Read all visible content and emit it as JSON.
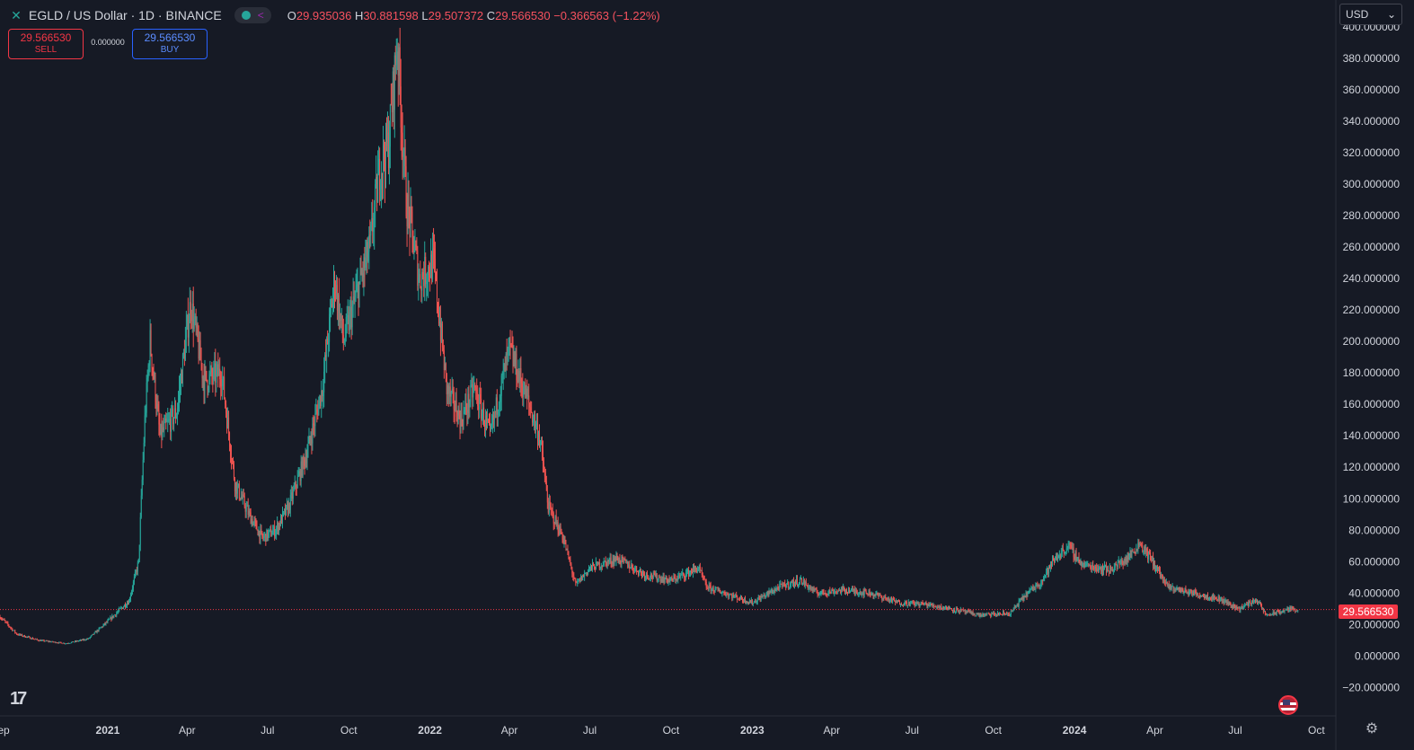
{
  "legend": {
    "symbol": "EGLD / US Dollar · 1D · BINANCE",
    "open_key": "O",
    "open": "29.935036",
    "high_key": "H",
    "high": "30.881598",
    "low_key": "L",
    "low": "29.507372",
    "close_key": "C",
    "close": "29.566530",
    "change": "−0.366563 (−1.22%)"
  },
  "trade": {
    "sell_price": "29.566530",
    "sell_label": "SELL",
    "spread": "0.000000",
    "buy_price": "29.566530",
    "buy_label": "BUY"
  },
  "currency": {
    "value": "USD",
    "icon": "chevron-down-icon"
  },
  "last_price_label": "29.566530",
  "colors": {
    "background": "#161a25",
    "up": "#26a69a",
    "down": "#ef5350",
    "axis_text": "#d1d4dc",
    "last_price": "#f23645"
  },
  "chart_data": {
    "type": "candlestick",
    "title": "EGLD / US Dollar · 1D · BINANCE",
    "y_tick_labels": [
      "400.000000",
      "380.000000",
      "360.000000",
      "340.000000",
      "320.000000",
      "300.000000",
      "280.000000",
      "260.000000",
      "240.000000",
      "220.000000",
      "200.000000",
      "180.000000",
      "160.000000",
      "140.000000",
      "120.000000",
      "100.000000",
      "80.000000",
      "60.000000",
      "40.000000",
      "20.000000",
      "0.000000",
      "−20.000000"
    ],
    "y_ticks": [
      400,
      380,
      360,
      340,
      320,
      300,
      280,
      260,
      240,
      220,
      200,
      180,
      160,
      140,
      120,
      100,
      80,
      60,
      40,
      20,
      0,
      -20
    ],
    "ylim": [
      -38,
      417
    ],
    "x_tick_labels": [
      "Sep",
      "2021",
      "Apr",
      "Jul",
      "Oct",
      "2022",
      "Apr",
      "Jul",
      "Oct",
      "2023",
      "Apr",
      "Jul",
      "Oct",
      "2024",
      "Apr",
      "Jul",
      "Oct"
    ],
    "x_ticks": [
      "2020-09-01",
      "2021-01-01",
      "2021-04-01",
      "2021-07-01",
      "2021-10-01",
      "2022-01-01",
      "2022-04-01",
      "2022-07-01",
      "2022-10-01",
      "2023-01-01",
      "2023-04-01",
      "2023-07-01",
      "2023-10-01",
      "2024-01-01",
      "2024-04-01",
      "2024-07-01",
      "2024-10-01"
    ],
    "xlim": [
      "2020-09-01",
      "2024-10-23"
    ],
    "last_price": 29.56653,
    "approx_close_path": [
      [
        "2020-09-01",
        25
      ],
      [
        "2020-09-20",
        14
      ],
      [
        "2020-10-15",
        10
      ],
      [
        "2020-11-15",
        8
      ],
      [
        "2020-12-10",
        11
      ],
      [
        "2021-01-01",
        22
      ],
      [
        "2021-01-25",
        35
      ],
      [
        "2021-02-05",
        60
      ],
      [
        "2021-02-12",
        150
      ],
      [
        "2021-02-18",
        200
      ],
      [
        "2021-03-01",
        140
      ],
      [
        "2021-03-20",
        155
      ],
      [
        "2021-04-05",
        225
      ],
      [
        "2021-04-20",
        175
      ],
      [
        "2021-05-10",
        180
      ],
      [
        "2021-05-25",
        110
      ],
      [
        "2021-06-10",
        90
      ],
      [
        "2021-06-25",
        75
      ],
      [
        "2021-07-10",
        80
      ],
      [
        "2021-07-25",
        95
      ],
      [
        "2021-08-15",
        130
      ],
      [
        "2021-09-01",
        170
      ],
      [
        "2021-09-15",
        240
      ],
      [
        "2021-09-25",
        200
      ],
      [
        "2021-10-10",
        230
      ],
      [
        "2021-10-25",
        260
      ],
      [
        "2021-11-05",
        310
      ],
      [
        "2021-11-15",
        325
      ],
      [
        "2021-11-25",
        390
      ],
      [
        "2021-12-05",
        290
      ],
      [
        "2021-12-20",
        240
      ],
      [
        "2022-01-05",
        250
      ],
      [
        "2022-01-20",
        170
      ],
      [
        "2022-02-05",
        150
      ],
      [
        "2022-02-20",
        170
      ],
      [
        "2022-03-10",
        140
      ],
      [
        "2022-04-01",
        195
      ],
      [
        "2022-04-20",
        165
      ],
      [
        "2022-05-05",
        140
      ],
      [
        "2022-05-15",
        95
      ],
      [
        "2022-06-01",
        75
      ],
      [
        "2022-06-15",
        45
      ],
      [
        "2022-07-01",
        56
      ],
      [
        "2022-08-01",
        62
      ],
      [
        "2022-09-01",
        52
      ],
      [
        "2022-10-01",
        48
      ],
      [
        "2022-11-01",
        56
      ],
      [
        "2022-11-10",
        44
      ],
      [
        "2022-12-01",
        40
      ],
      [
        "2023-01-01",
        34
      ],
      [
        "2023-02-01",
        44
      ],
      [
        "2023-02-25",
        48
      ],
      [
        "2023-03-15",
        40
      ],
      [
        "2023-04-15",
        42
      ],
      [
        "2023-05-15",
        40
      ],
      [
        "2023-06-15",
        34
      ],
      [
        "2023-07-15",
        33
      ],
      [
        "2023-08-15",
        30
      ],
      [
        "2023-09-15",
        26
      ],
      [
        "2023-10-20",
        27
      ],
      [
        "2023-11-05",
        38
      ],
      [
        "2023-11-25",
        48
      ],
      [
        "2023-12-10",
        62
      ],
      [
        "2023-12-25",
        70
      ],
      [
        "2024-01-10",
        58
      ],
      [
        "2024-02-10",
        55
      ],
      [
        "2024-03-01",
        62
      ],
      [
        "2024-03-15",
        72
      ],
      [
        "2024-04-01",
        58
      ],
      [
        "2024-04-15",
        44
      ],
      [
        "2024-05-15",
        40
      ],
      [
        "2024-06-15",
        36
      ],
      [
        "2024-07-05",
        30
      ],
      [
        "2024-07-25",
        36
      ],
      [
        "2024-08-05",
        26
      ],
      [
        "2024-08-20",
        28
      ],
      [
        "2024-09-01",
        30
      ],
      [
        "2024-09-10",
        29.57
      ]
    ]
  }
}
